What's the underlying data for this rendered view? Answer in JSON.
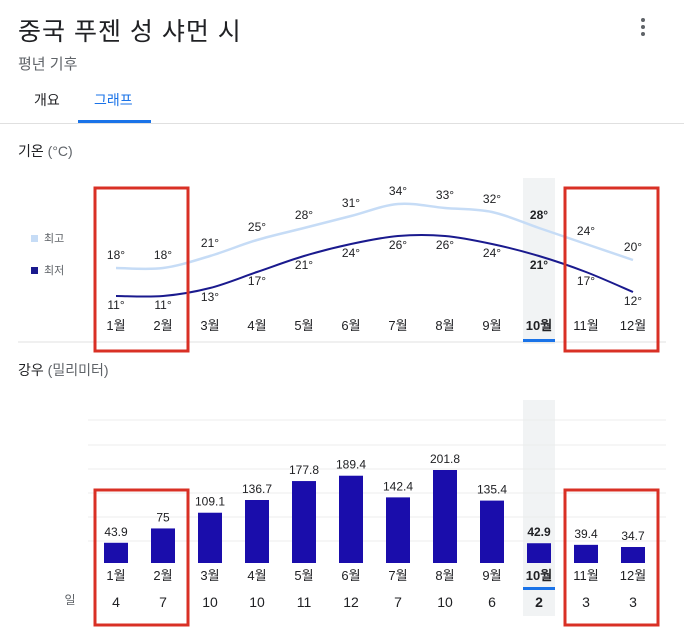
{
  "header": {
    "title": "중국 푸젠 성 샤먼 시",
    "subtitle": "평년 기후",
    "more_icon": "more-vert-icon"
  },
  "tabs": [
    {
      "label": "개요",
      "active": false
    },
    {
      "label": "그래프",
      "active": true
    }
  ],
  "temperature": {
    "label": "기온",
    "unit": "(°C)",
    "legend": {
      "high": "최고",
      "low": "최저"
    }
  },
  "rainfall": {
    "label": "강우",
    "unit": "(밀리미터)",
    "days_label": "일"
  },
  "colors": {
    "accent": "#1a73e8",
    "high_line": "#c6dcf6",
    "low_line": "#1a1a8e",
    "bar": "#1a0dab",
    "highlight_box": "#d93025",
    "selected_column": "#f1f3f4"
  },
  "chart_data": [
    {
      "type": "line",
      "title": "기온 (°C)",
      "categories": [
        "1월",
        "2월",
        "3월",
        "4월",
        "5월",
        "6월",
        "7월",
        "8월",
        "9월",
        "10월",
        "11월",
        "12월"
      ],
      "series": [
        {
          "name": "최고",
          "values": [
            18,
            18,
            21,
            25,
            28,
            31,
            34,
            33,
            32,
            28,
            24,
            20
          ]
        },
        {
          "name": "최저",
          "values": [
            11,
            11,
            13,
            17,
            21,
            24,
            26,
            26,
            24,
            21,
            17,
            12
          ]
        }
      ],
      "selected_index": 9,
      "highlighted_groups": [
        [
          0,
          1
        ],
        [
          10,
          11
        ]
      ]
    },
    {
      "type": "bar",
      "title": "강우 (밀리미터)",
      "categories": [
        "1월",
        "2월",
        "3월",
        "4월",
        "5월",
        "6월",
        "7월",
        "8월",
        "9월",
        "10월",
        "11월",
        "12월"
      ],
      "values": [
        43.9,
        75,
        109.1,
        136.7,
        177.8,
        189.4,
        142.4,
        201.8,
        135.4,
        42.9,
        39.4,
        34.7
      ],
      "days_label": "일",
      "days": [
        4,
        7,
        10,
        10,
        11,
        12,
        7,
        10,
        6,
        2,
        3,
        3
      ],
      "selected_index": 9,
      "highlighted_groups": [
        [
          0,
          1
        ],
        [
          10,
          11
        ]
      ]
    }
  ]
}
